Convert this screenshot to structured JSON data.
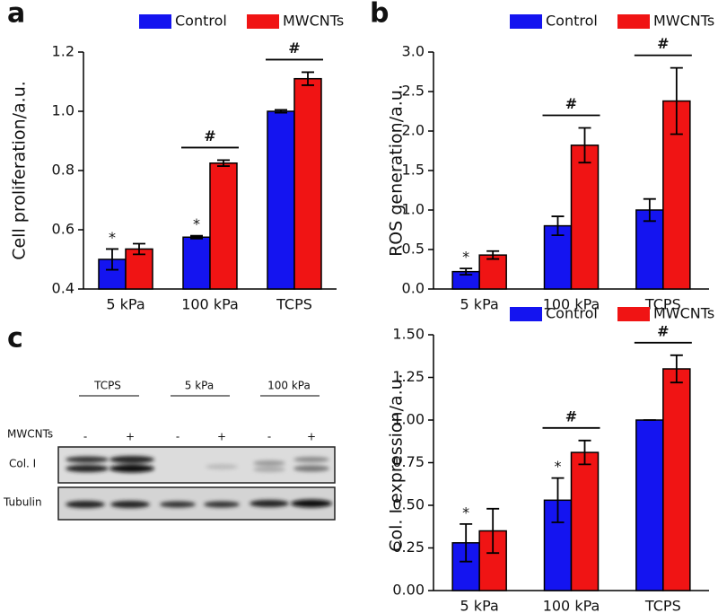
{
  "panel_labels": [
    "a",
    "b",
    "c"
  ],
  "blot": {
    "groups": [
      "TCPS",
      "5 kPa",
      "100 kPa"
    ],
    "row_label": "MWCNTs",
    "signs": [
      "-",
      "+",
      "-",
      "+",
      "-",
      "+"
    ],
    "bands": [
      "Col. I",
      "Tubulin"
    ]
  },
  "chart_data": [
    {
      "type": "bar",
      "y_label": "Cell proliferation/a.u.",
      "categories": [
        "5 kPa",
        "100 kPa",
        "TCPS"
      ],
      "ylim": [
        0.4,
        1.2
      ],
      "yticks": [
        0.4,
        0.6,
        0.8,
        {
          "value": 1,
          "label": "1.0"
        },
        1.2
      ],
      "legend": "top-right",
      "series": [
        {
          "name": "Control",
          "color": "#1414f0",
          "values": [
            0.5,
            0.575,
            1.0
          ],
          "errors": [
            0.035,
            0.005,
            0.005
          ],
          "annotations": [
            "*",
            "*",
            null
          ]
        },
        {
          "name": "MWCNTs",
          "color": "#f01414",
          "values": [
            0.535,
            0.825,
            1.11
          ],
          "errors": [
            0.018,
            0.01,
            0.022
          ],
          "annotations": [
            null,
            null,
            null
          ]
        }
      ],
      "pair_annotations": [
        null,
        "#",
        "#"
      ]
    },
    {
      "type": "bar",
      "y_label": "ROS generation/a.u.",
      "categories": [
        "5 kPa",
        "100 kPa",
        "TCPS"
      ],
      "ylim": [
        0,
        3
      ],
      "yticks": [
        {
          "value": 0,
          "label": "0.0"
        },
        0.5,
        {
          "value": 1,
          "label": "1.0"
        },
        1.5,
        {
          "value": 2,
          "label": "2.0"
        },
        2.5,
        {
          "value": 3,
          "label": "3.0"
        }
      ],
      "legend": "top-right",
      "series": [
        {
          "name": "Control",
          "color": "#1414f0",
          "values": [
            0.22,
            0.8,
            1.0
          ],
          "errors": [
            0.04,
            0.12,
            0.14
          ],
          "annotations": [
            "*",
            null,
            null
          ]
        },
        {
          "name": "MWCNTs",
          "color": "#f01414",
          "values": [
            0.43,
            1.82,
            2.38
          ],
          "errors": [
            0.05,
            0.22,
            0.42
          ],
          "annotations": [
            null,
            null,
            null
          ]
        }
      ],
      "pair_annotations": [
        null,
        "#",
        "#"
      ]
    },
    {
      "type": "bar",
      "y_label": "Col. I expression/a.u.",
      "categories": [
        "5 kPa",
        "100 kPa",
        "TCPS"
      ],
      "ylim": [
        0,
        1.5
      ],
      "yticks": [
        {
          "value": 0,
          "label": "0.00"
        },
        0.25,
        {
          "value": 0.5,
          "label": "0.50"
        },
        0.75,
        {
          "value": 1,
          "label": "1.00"
        },
        1.25,
        {
          "value": 1.5,
          "label": "1.50"
        }
      ],
      "legend": "top-right",
      "series": [
        {
          "name": "Control",
          "color": "#1414f0",
          "values": [
            0.28,
            0.53,
            1.0
          ],
          "errors": [
            0.11,
            0.13,
            0
          ],
          "annotations": [
            "*",
            "*",
            null
          ]
        },
        {
          "name": "MWCNTs",
          "color": "#f01414",
          "values": [
            0.35,
            0.81,
            1.3
          ],
          "errors": [
            0.13,
            0.07,
            0.08
          ],
          "annotations": [
            null,
            null,
            null
          ]
        }
      ],
      "pair_annotations": [
        null,
        "#",
        "#"
      ]
    }
  ]
}
